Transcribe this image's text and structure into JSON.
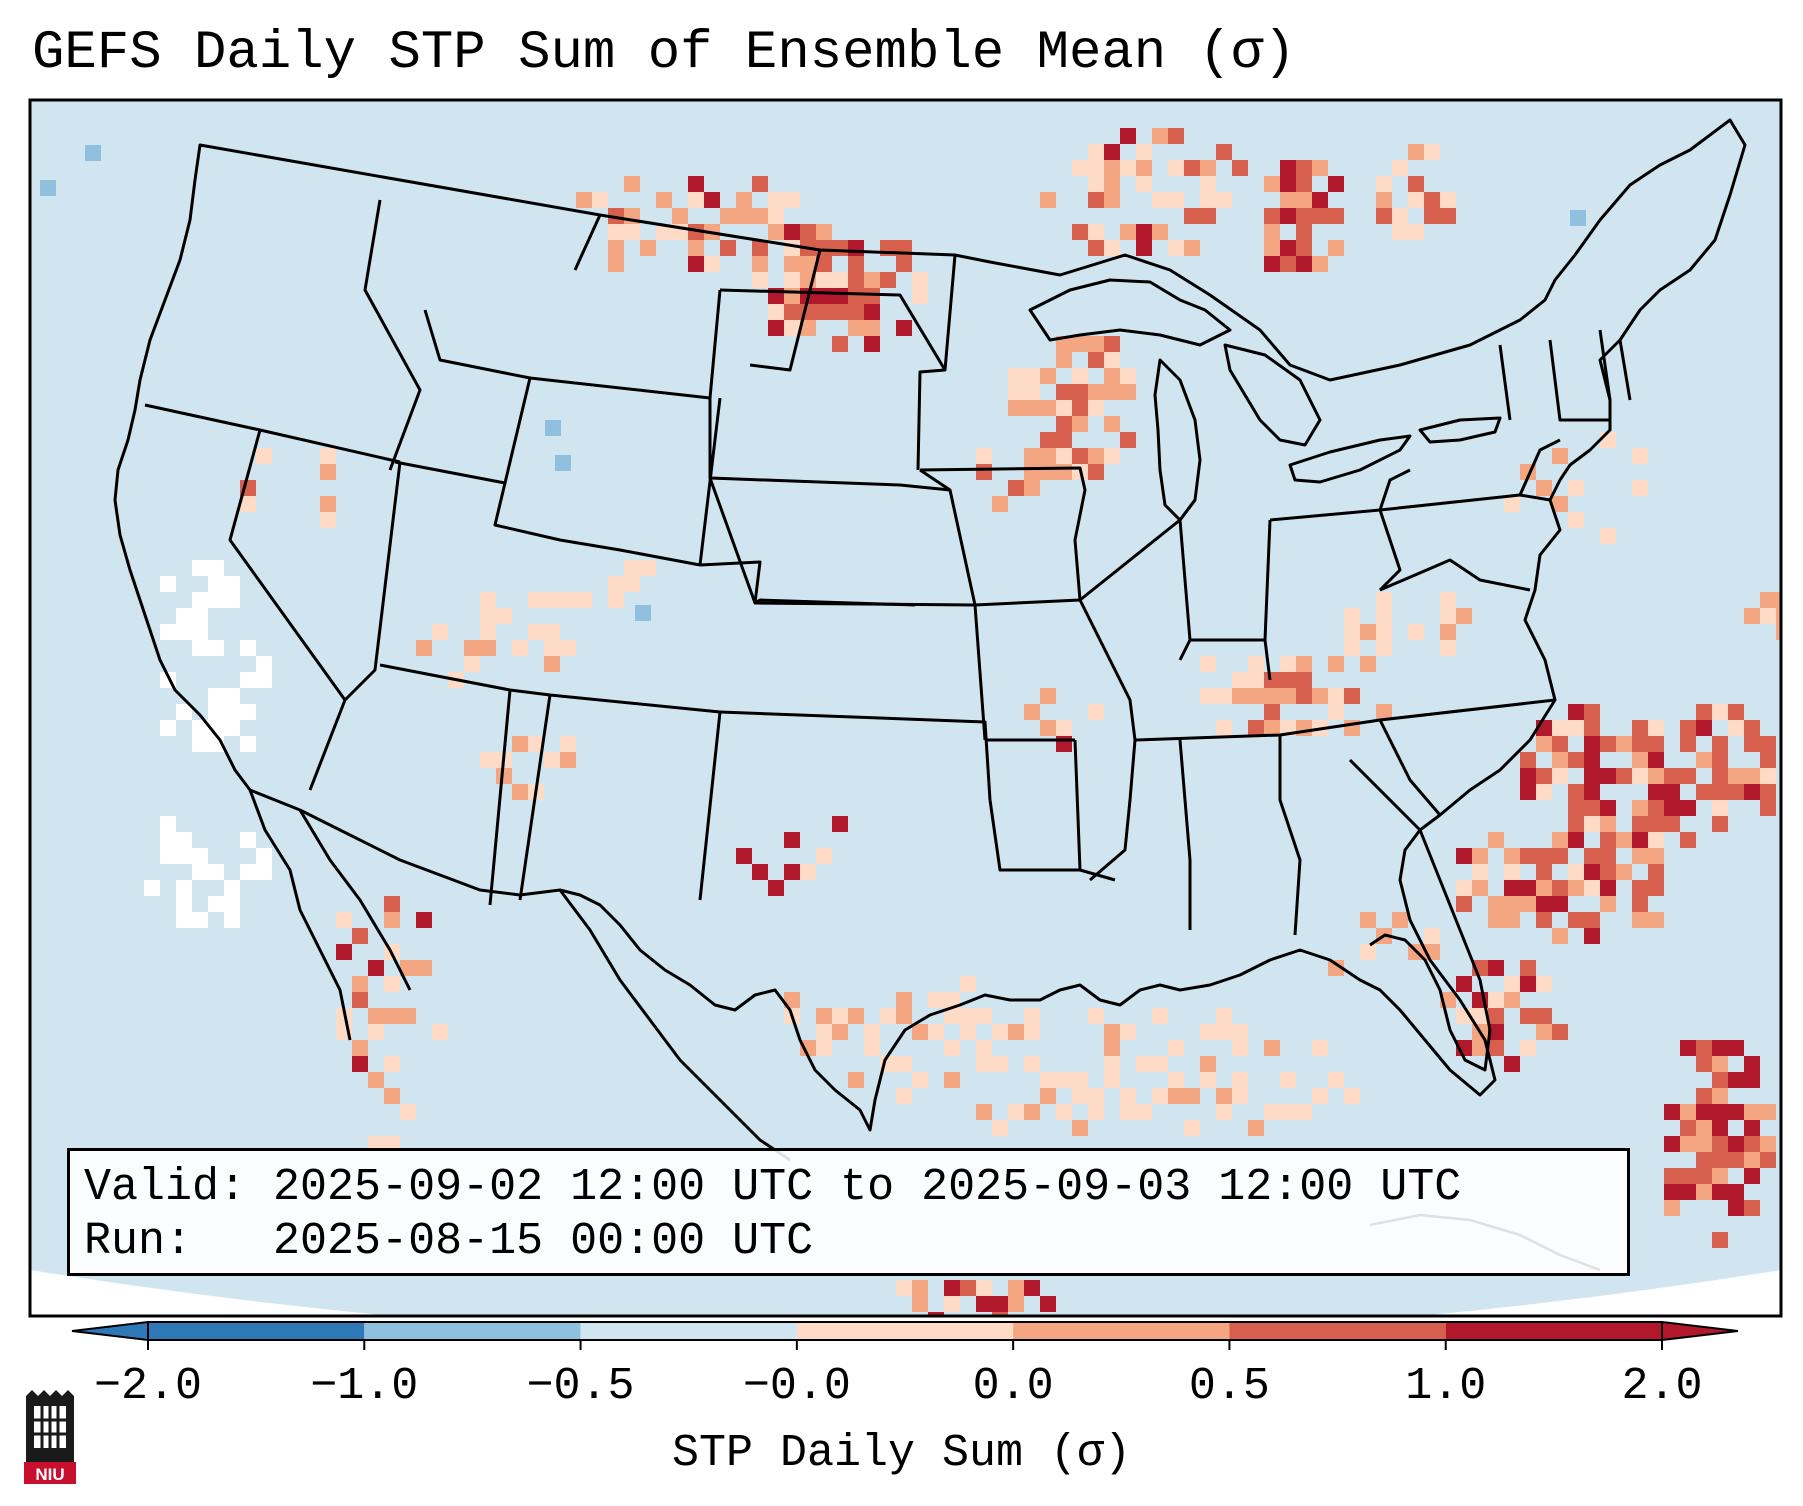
{
  "title": "GEFS Daily STP Sum of Ensemble Mean (σ)",
  "info": {
    "valid_label": "Valid:",
    "valid_value": "2025-09-02 12:00 UTC to 2025-09-03 12:00 UTC",
    "run_label": "Run:",
    "run_value": "2025-08-15 00:00 UTC"
  },
  "colorbar": {
    "label": "STP Daily Sum (σ)",
    "ticks": [
      "−2.0",
      "−1.0",
      "−0.5",
      "−0.0",
      "0.0",
      "0.5",
      "1.0",
      "2.0"
    ],
    "colors": [
      "#2e78b7",
      "#8fc0de",
      "#d1e5f0",
      "#f7f7f7",
      "#fddbc7",
      "#f4a582",
      "#d6604d",
      "#b2182b"
    ],
    "extend": "both"
  },
  "logo": {
    "text": "NIU",
    "brand_color": "#c8102e"
  },
  "map": {
    "ocean_color": "#d1e5f0",
    "region": "Continental United States",
    "projection": "Lambert Conformal"
  }
}
